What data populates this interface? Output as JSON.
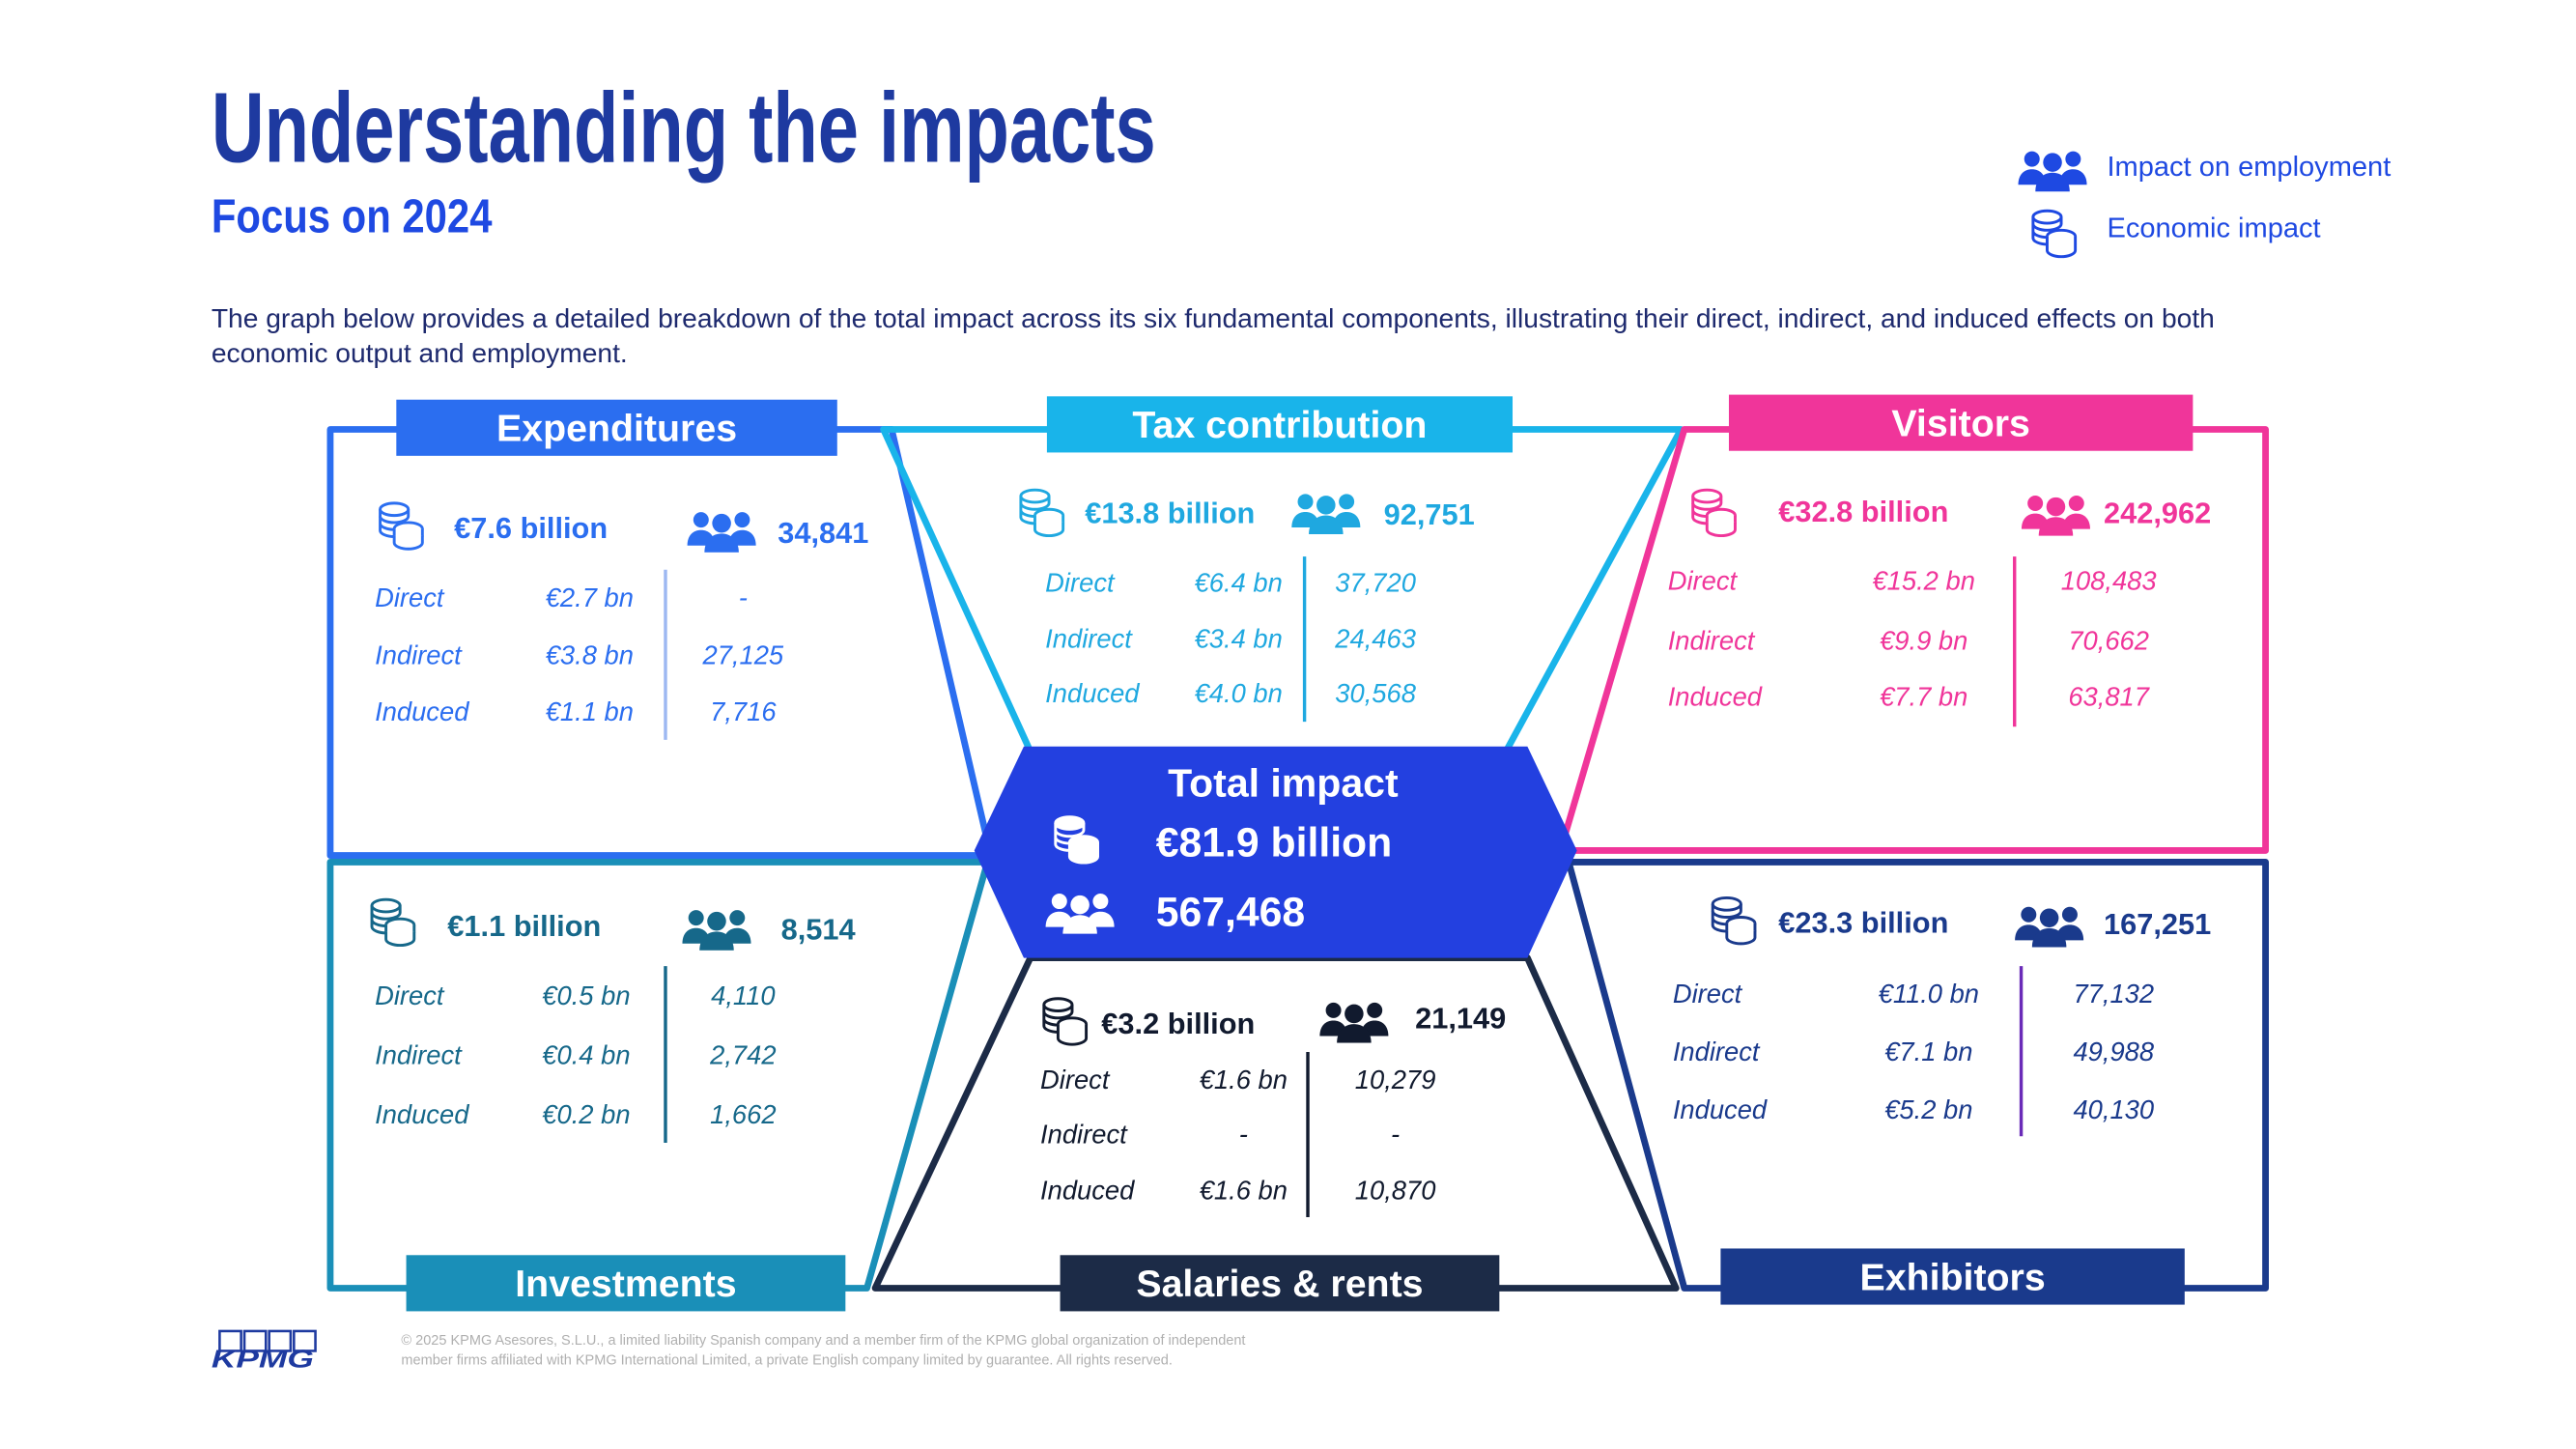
{
  "header": {
    "title": "Understanding the impacts",
    "subtitle": "Focus on 2024"
  },
  "legend": [
    {
      "label": "Impact on employment"
    },
    {
      "label": "Economic impact"
    }
  ],
  "intro": [
    "The graph below provides a detailed breakdown of the total impact across its six fundamental components, illustrating their direct, indirect, and induced effects on both",
    "economic output and employment."
  ],
  "total": {
    "title": "Total impact",
    "economic": "€81.9 billion",
    "employment": "567,468"
  },
  "panels": [
    {
      "title": "Expenditures",
      "economic": "€7.6 billion",
      "employment": "34,841",
      "rows": [
        [
          "Direct",
          "€2.7 bn",
          "-"
        ],
        [
          "Indirect",
          "€3.8 bn",
          "27,125"
        ],
        [
          "Induced",
          "€1.1 bn",
          "7,716"
        ]
      ]
    },
    {
      "title": "Tax contribution",
      "economic": "€13.8 billion",
      "employment": "92,751",
      "rows": [
        [
          "Direct",
          "€6.4 bn",
          "37,720"
        ],
        [
          "Indirect",
          "€3.4 bn",
          "24,463"
        ],
        [
          "Induced",
          "€4.0 bn",
          "30,568"
        ]
      ]
    },
    {
      "title": "Visitors",
      "economic": "€32.8 billion",
      "employment": "242,962",
      "rows": [
        [
          "Direct",
          "€15.2 bn",
          "108,483"
        ],
        [
          "Indirect",
          "€9.9 bn",
          "70,662"
        ],
        [
          "Induced",
          "€7.7 bn",
          "63,817"
        ]
      ]
    },
    {
      "title": "Investments",
      "economic": "€1.1 billion",
      "employment": "8,514",
      "rows": [
        [
          "Direct",
          "€0.5 bn",
          "4,110"
        ],
        [
          "Indirect",
          "€0.4 bn",
          "2,742"
        ],
        [
          "Induced",
          "€0.2 bn",
          "1,662"
        ]
      ]
    },
    {
      "title": "Salaries & rents",
      "economic": "€3.2 billion",
      "employment": "21,149",
      "rows": [
        [
          "Direct",
          "€1.6 bn",
          "10,279"
        ],
        [
          "Indirect",
          "-",
          "-"
        ],
        [
          "Induced",
          "€1.6 bn",
          "10,870"
        ]
      ]
    },
    {
      "title": "Exhibitors",
      "economic": "€23.3 billion",
      "employment": "167,251",
      "rows": [
        [
          "Direct",
          "€11.0 bn",
          "77,132"
        ],
        [
          "Indirect",
          "€7.1 bn",
          "49,988"
        ],
        [
          "Induced",
          "€5.2 bn",
          "40,130"
        ]
      ]
    }
  ],
  "footer": {
    "logo": "KPMG",
    "copyright": [
      "© 2025 KPMG Asesores, S.L.U., a limited liability Spanish company and a member firm of the KPMG global organization of independent",
      "member firms affiliated with KPMG International Limited, a private English company limited by guarantee. All rights reserved."
    ]
  }
}
